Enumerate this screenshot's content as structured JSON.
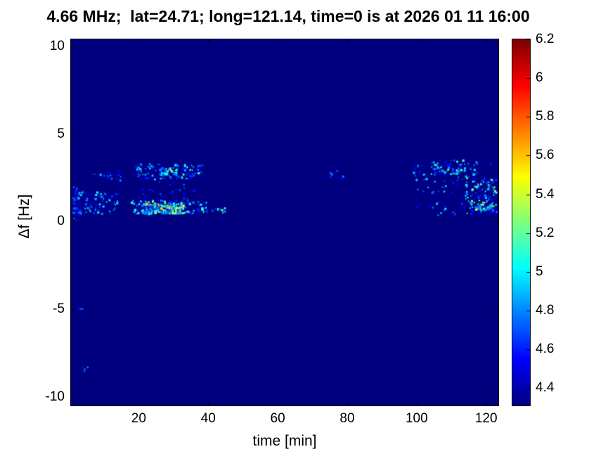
{
  "chart_data": {
    "type": "heatmap",
    "title": "4.66 MHz;  lat=24.71; long=121.14, time=0 is at 2026 01 11 16:00",
    "xlabel": "time [min]",
    "ylabel": "Δf [Hz]",
    "xlim": [
      0.5,
      123.5
    ],
    "ylim": [
      -10.5,
      10.4
    ],
    "xticks": [
      20,
      40,
      60,
      80,
      100,
      120
    ],
    "yticks": [
      10,
      5,
      0,
      -5,
      -10
    ],
    "colormap": "jet",
    "clim": [
      4.31,
      6.2
    ],
    "colorbar_ticks": [
      4.4,
      4.6,
      4.8,
      5,
      5.2,
      5.4,
      5.6,
      5.8,
      6,
      6.2
    ],
    "background_value": 4.31,
    "legend": "colorbar-right",
    "grid": false,
    "speckle_seed": 42,
    "speckle_clusters": [
      {
        "x": [
          1,
          14
        ],
        "y": [
          0.4,
          1.7
        ],
        "count": 110,
        "v": [
          4.4,
          5.1
        ]
      },
      {
        "x": [
          1,
          3
        ],
        "y": [
          0.0,
          2.0
        ],
        "count": 30,
        "v": [
          4.4,
          4.9
        ]
      },
      {
        "x": [
          6,
          15
        ],
        "y": [
          2.2,
          2.9
        ],
        "count": 28,
        "v": [
          4.4,
          4.9
        ]
      },
      {
        "x": [
          18,
          40
        ],
        "y": [
          0.4,
          1.2
        ],
        "count": 200,
        "v": [
          4.4,
          5.2
        ]
      },
      {
        "x": [
          21,
          33
        ],
        "y": [
          0.45,
          1.05
        ],
        "count": 140,
        "v": [
          4.7,
          5.65
        ]
      },
      {
        "x": [
          19,
          39
        ],
        "y": [
          2.4,
          3.3
        ],
        "count": 130,
        "v": [
          4.4,
          5.15
        ]
      },
      {
        "x": [
          26,
          31
        ],
        "y": [
          2.6,
          3.1
        ],
        "count": 30,
        "v": [
          4.7,
          5.3
        ]
      },
      {
        "x": [
          20,
          36
        ],
        "y": [
          1.3,
          2.3
        ],
        "count": 25,
        "v": [
          4.4,
          4.8
        ]
      },
      {
        "x": [
          41,
          45
        ],
        "y": [
          0.5,
          0.9
        ],
        "count": 10,
        "v": [
          4.5,
          5.3
        ]
      },
      {
        "x": [
          75,
          79
        ],
        "y": [
          2.4,
          2.9
        ],
        "count": 10,
        "v": [
          4.4,
          4.8
        ]
      },
      {
        "x": [
          99,
          123
        ],
        "y": [
          0.3,
          3.5
        ],
        "count": 130,
        "v": [
          4.4,
          5.0
        ]
      },
      {
        "x": [
          104,
          118
        ],
        "y": [
          2.6,
          3.5
        ],
        "count": 70,
        "v": [
          4.4,
          5.3
        ]
      },
      {
        "x": [
          114,
          123
        ],
        "y": [
          0.4,
          2.6
        ],
        "count": 120,
        "v": [
          4.4,
          5.3
        ]
      },
      {
        "x": [
          117,
          122
        ],
        "y": [
          0.6,
          1.1
        ],
        "count": 30,
        "v": [
          4.7,
          5.4
        ]
      },
      {
        "x": [
          3,
          6
        ],
        "y": [
          -8.6,
          -8.2
        ],
        "count": 4,
        "v": [
          4.5,
          4.9
        ]
      },
      {
        "x": [
          2,
          4
        ],
        "y": [
          -5.1,
          -4.8
        ],
        "count": 3,
        "v": [
          4.5,
          4.8
        ]
      }
    ]
  }
}
